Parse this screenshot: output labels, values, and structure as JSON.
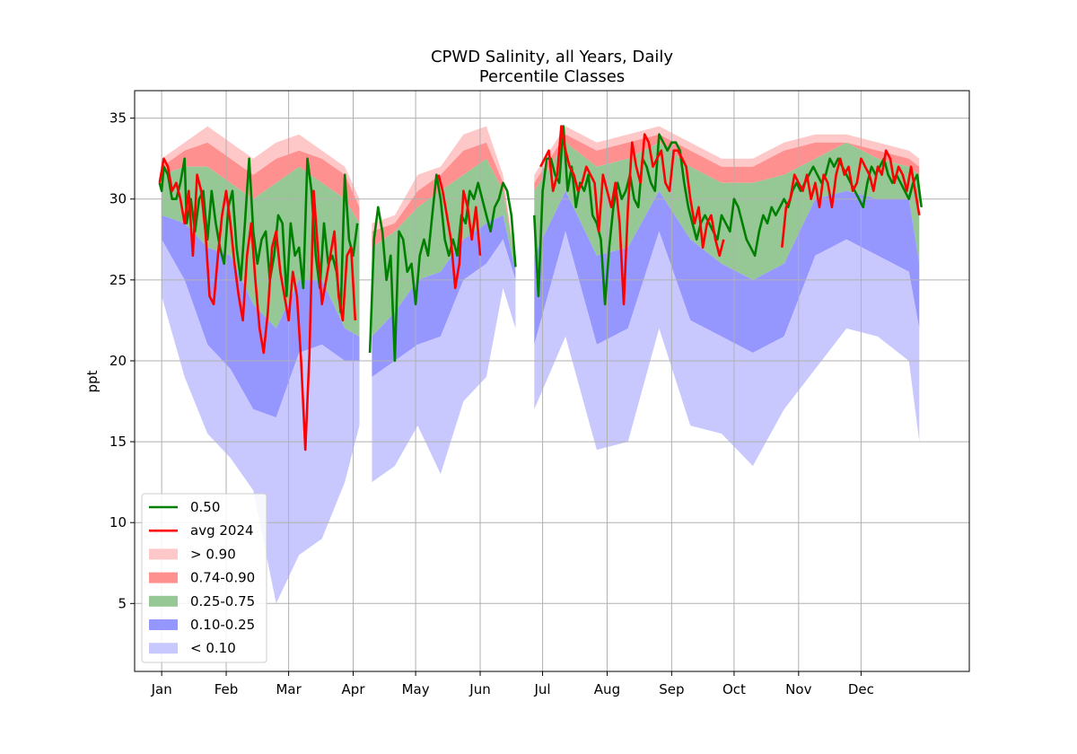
{
  "chart_data": {
    "type": "area",
    "title": "CPWD Salinity, all Years, Daily",
    "subtitle": "Percentile Classes",
    "ylabel": "ppt",
    "xlabel": "",
    "ylim": [
      0.8,
      36.7
    ],
    "yticks": [
      5,
      10,
      15,
      20,
      25,
      30,
      35
    ],
    "x_range_days": [
      -12,
      389
    ],
    "months": [
      {
        "label": "Jan",
        "day": 1
      },
      {
        "label": "Feb",
        "day": 32
      },
      {
        "label": "Mar",
        "day": 62
      },
      {
        "label": "Apr",
        "day": 93
      },
      {
        "label": "May",
        "day": 123
      },
      {
        "label": "Jun",
        "day": 154
      },
      {
        "label": "Jul",
        "day": 184
      },
      {
        "label": "Aug",
        "day": 215
      },
      {
        "label": "Sep",
        "day": 246
      },
      {
        "label": "Oct",
        "day": 276
      },
      {
        "label": "Nov",
        "day": 307
      },
      {
        "label": "Dec",
        "day": 337
      }
    ],
    "grid": true,
    "legend_position": "lower-left",
    "legend": [
      {
        "label": "0.50",
        "kind": "line",
        "color": "#008000"
      },
      {
        "label": "avg 2024",
        "kind": "line",
        "color": "#ff0000"
      },
      {
        "label": "> 0.90",
        "kind": "patch",
        "color": "#ffc8c8"
      },
      {
        "label": "0.74-0.90",
        "kind": "patch",
        "color": "#ff9090"
      },
      {
        "label": "0.25-0.75",
        "kind": "patch",
        "color": "#96c896"
      },
      {
        "label": "0.10-0.25",
        "kind": "patch",
        "color": "#9696ff"
      },
      {
        "label": "< 0.10",
        "kind": "patch",
        "color": "#c8c8ff"
      }
    ],
    "segments": [
      {
        "x": [
          1,
          12,
          23,
          34,
          45,
          56,
          67,
          78,
          89,
          96
        ],
        "max": [
          32.5,
          33.5,
          34.5,
          33.5,
          32.5,
          33.5,
          34.0,
          33.0,
          32.0,
          30.0
        ],
        "p90": [
          32.0,
          33.0,
          33.5,
          32.5,
          31.5,
          32.5,
          33.0,
          32.5,
          31.5,
          29.5
        ],
        "p75": [
          31.5,
          32.0,
          32.0,
          31.0,
          30.0,
          31.0,
          32.0,
          31.0,
          30.0,
          28.5
        ],
        "p50": [
          31.0,
          31.5,
          30.0,
          28.5,
          27.5,
          28.0,
          28.0,
          29.5,
          27.5,
          28.5
        ],
        "p25": [
          29.0,
          28.5,
          27.0,
          26.5,
          23.5,
          22.0,
          25.0,
          25.0,
          22.0,
          21.5
        ],
        "p10": [
          27.5,
          25.0,
          21.0,
          19.5,
          17.0,
          16.5,
          20.5,
          21.0,
          20.0,
          20.0
        ],
        "min": [
          24.0,
          19.0,
          15.5,
          14.0,
          12.0,
          5.0,
          8.0,
          9.0,
          12.5,
          16.0
        ]
      },
      {
        "x": [
          102,
          113,
          124,
          135,
          146,
          157,
          165,
          171
        ],
        "max": [
          28.5,
          29.0,
          31.5,
          32.0,
          34.0,
          34.5,
          31.5,
          26.0
        ],
        "p90": [
          28.0,
          28.5,
          30.5,
          31.5,
          33.0,
          33.5,
          31.0,
          26.0
        ],
        "p75": [
          27.0,
          28.0,
          29.5,
          30.5,
          31.5,
          32.5,
          30.5,
          26.0
        ],
        "p50": [
          24.0,
          25.5,
          27.0,
          27.5,
          30.0,
          30.5,
          30.5,
          26.0
        ],
        "p25": [
          21.5,
          23.0,
          25.0,
          25.5,
          27.5,
          28.5,
          29.0,
          25.5
        ],
        "p10": [
          19.0,
          20.0,
          21.0,
          21.5,
          25.0,
          26.0,
          27.5,
          25.0
        ],
        "min": [
          12.5,
          13.5,
          16.0,
          13.0,
          17.5,
          19.0,
          24.5,
          22.0
        ]
      },
      {
        "x": [
          180,
          195,
          210,
          225,
          240,
          255,
          270,
          285,
          300,
          315,
          330,
          345,
          360,
          365
        ],
        "max": [
          31.5,
          34.5,
          33.5,
          34.0,
          34.5,
          33.5,
          32.5,
          32.5,
          33.5,
          34.0,
          34.0,
          33.5,
          33.0,
          32.5
        ],
        "p90": [
          31.0,
          34.0,
          33.0,
          33.5,
          34.0,
          33.0,
          32.0,
          32.0,
          33.0,
          33.5,
          33.5,
          33.0,
          32.5,
          32.0
        ],
        "p75": [
          30.5,
          33.5,
          32.0,
          32.5,
          33.5,
          32.0,
          31.0,
          31.0,
          31.5,
          32.5,
          33.5,
          32.5,
          32.0,
          31.5
        ],
        "p50": [
          29.0,
          32.5,
          30.0,
          30.0,
          33.0,
          30.5,
          29.0,
          28.5,
          29.5,
          31.5,
          32.0,
          32.0,
          31.5,
          29.5
        ],
        "p25": [
          26.5,
          30.5,
          26.5,
          27.0,
          30.5,
          27.5,
          26.0,
          25.0,
          26.0,
          30.0,
          30.5,
          30.0,
          30.0,
          26.0
        ],
        "p10": [
          21.0,
          28.0,
          21.0,
          22.0,
          28.0,
          22.5,
          21.5,
          20.5,
          21.5,
          26.5,
          27.5,
          26.5,
          25.5,
          22.0
        ],
        "min": [
          17.0,
          21.5,
          14.5,
          15.0,
          22.0,
          16.0,
          15.5,
          13.5,
          17.0,
          19.5,
          22.0,
          21.5,
          20.0,
          15.0
        ]
      }
    ],
    "median_segments": [
      {
        "x": [
          0,
          1,
          2,
          4,
          6,
          8,
          10,
          12,
          13,
          15,
          17,
          19,
          21,
          23,
          25,
          27,
          29,
          31,
          33,
          35,
          37,
          39,
          41,
          43,
          45,
          47,
          49,
          51,
          53,
          55,
          57,
          59,
          61,
          63,
          65,
          67,
          69,
          71,
          73,
          75,
          77,
          79,
          81,
          83,
          85,
          87,
          89,
          91,
          93,
          95
        ],
        "y": [
          31.0,
          30.5,
          32.0,
          31.5,
          30.0,
          30.0,
          31.0,
          32.5,
          28.5,
          30.0,
          28.0,
          30.0,
          30.5,
          27.5,
          30.5,
          28.5,
          27.0,
          26.0,
          29.5,
          30.5,
          27.0,
          25.0,
          28.5,
          32.5,
          28.0,
          26.0,
          27.5,
          28.0,
          25.0,
          26.5,
          29.0,
          28.5,
          24.0,
          28.5,
          26.5,
          27.0,
          24.5,
          32.5,
          30.5,
          26.5,
          24.5,
          28.5,
          26.0,
          26.5,
          25.5,
          23.0,
          31.5,
          27.5,
          26.5,
          28.5
        ]
      },
      {
        "x": [
          101,
          103,
          105,
          107,
          109,
          111,
          113,
          115,
          117,
          119,
          121,
          123,
          125,
          127,
          129,
          131,
          133,
          135,
          137,
          139,
          141,
          143,
          145,
          147,
          149,
          151,
          153,
          155,
          157,
          159,
          161,
          163,
          165,
          167,
          169,
          171
        ],
        "y": [
          20.5,
          27.5,
          29.5,
          28.0,
          25.0,
          26.5,
          20.0,
          28.0,
          27.5,
          25.5,
          26.0,
          23.5,
          26.5,
          27.5,
          26.5,
          29.0,
          31.5,
          30.0,
          27.5,
          26.5,
          27.5,
          26.5,
          29.0,
          28.5,
          30.5,
          30.0,
          31.0,
          30.0,
          29.0,
          28.0,
          29.5,
          30.0,
          31.0,
          30.5,
          29.0,
          25.8
        ]
      },
      {
        "x": [
          180,
          182,
          184,
          186,
          188,
          190,
          192,
          194,
          196,
          198,
          200,
          202,
          204,
          206,
          208,
          210,
          212,
          214,
          216,
          218,
          220,
          222,
          224,
          226,
          228,
          230,
          232,
          234,
          236,
          238,
          240,
          242,
          244,
          246,
          248,
          250,
          252,
          254,
          256,
          258,
          260,
          262,
          264,
          266,
          268,
          270,
          272,
          274,
          276,
          278,
          280,
          282,
          284,
          286,
          288,
          290,
          292,
          294,
          296,
          298,
          300,
          302,
          304,
          306,
          308,
          310,
          312,
          314,
          316,
          318,
          320,
          322,
          324,
          326,
          328,
          330,
          332,
          334,
          336,
          338,
          340,
          342,
          344,
          346,
          348,
          350,
          352,
          354,
          356,
          358,
          360,
          362,
          364,
          366
        ],
        "y": [
          29.0,
          24.0,
          30.5,
          32.5,
          32.5,
          31.5,
          31.0,
          34.5,
          30.5,
          32.0,
          29.5,
          31.0,
          30.5,
          31.5,
          29.0,
          28.5,
          27.5,
          23.5,
          27.0,
          29.5,
          31.0,
          30.0,
          30.5,
          31.5,
          30.0,
          29.5,
          32.5,
          32.0,
          31.0,
          30.5,
          34.0,
          33.5,
          33.0,
          33.5,
          33.5,
          33.0,
          31.0,
          29.5,
          28.5,
          27.5,
          28.5,
          29.0,
          28.5,
          28.0,
          27.5,
          29.0,
          28.5,
          28.0,
          30.0,
          29.5,
          28.5,
          27.5,
          27.0,
          26.5,
          28.0,
          29.0,
          28.5,
          29.5,
          29.0,
          29.5,
          30.0,
          29.5,
          30.5,
          31.0,
          30.5,
          31.0,
          31.5,
          32.0,
          31.5,
          31.0,
          31.5,
          32.5,
          32.0,
          32.5,
          32.0,
          31.5,
          31.0,
          30.5,
          30.0,
          29.5,
          31.0,
          32.0,
          31.5,
          32.0,
          32.5,
          31.5,
          31.0,
          31.5,
          31.0,
          30.5,
          30.0,
          31.0,
          31.5,
          29.5
        ]
      }
    ],
    "avg_segments": [
      {
        "x": [
          0,
          2,
          4,
          6,
          8,
          10,
          12,
          14,
          16,
          18,
          20,
          22,
          24,
          26,
          28,
          30,
          32,
          34,
          36,
          38,
          40,
          42,
          44,
          46,
          48,
          50,
          52,
          54,
          56,
          58,
          60,
          62,
          64,
          66,
          68,
          70,
          72,
          74,
          76,
          78,
          80,
          82,
          84,
          86,
          88,
          90,
          92,
          94
        ],
        "y": [
          31.0,
          32.5,
          32.0,
          30.5,
          31.0,
          30.0,
          28.5,
          30.5,
          26.5,
          31.5,
          30.5,
          28.0,
          24.0,
          23.5,
          26.5,
          29.0,
          30.5,
          28.5,
          26.0,
          24.0,
          22.5,
          26.5,
          28.5,
          25.0,
          22.0,
          20.5,
          23.0,
          27.0,
          28.0,
          25.5,
          24.0,
          22.5,
          25.5,
          24.0,
          20.0,
          14.5,
          20.5,
          30.5,
          27.0,
          23.5,
          25.0,
          26.5,
          28.0,
          24.0,
          22.5,
          26.5,
          27.0,
          22.5
        ]
      },
      {
        "x": [
          134,
          136,
          138,
          140,
          142,
          144,
          146,
          148,
          150,
          152,
          154
        ],
        "y": [
          31.5,
          30.5,
          29.0,
          27.5,
          24.5,
          26.0,
          30.5,
          29.5,
          27.5,
          29.5,
          26.5
        ]
      },
      {
        "x": [
          183,
          185,
          187,
          189,
          191,
          193,
          195,
          197,
          199,
          201,
          203,
          205,
          207,
          209,
          211,
          213,
          215,
          217,
          219,
          221,
          223,
          225,
          227,
          229,
          231,
          233,
          235,
          237,
          239,
          241,
          243,
          245,
          247,
          249,
          251,
          253,
          255,
          257,
          259,
          261,
          263,
          265,
          267,
          269,
          271
        ],
        "y": [
          32.0,
          32.5,
          33.0,
          30.5,
          31.5,
          34.5,
          33.0,
          32.0,
          31.5,
          30.5,
          31.0,
          32.0,
          31.5,
          31.0,
          28.0,
          31.5,
          30.5,
          29.5,
          31.0,
          28.5,
          23.5,
          29.5,
          33.5,
          32.0,
          31.0,
          34.0,
          33.5,
          32.0,
          32.5,
          33.0,
          31.0,
          30.5,
          33.0,
          33.0,
          32.5,
          32.0,
          30.0,
          28.5,
          29.5,
          27.0,
          28.5,
          29.0,
          27.5,
          26.5,
          27.5
        ]
      },
      {
        "x": [
          299,
          301,
          303,
          305,
          307,
          309,
          311,
          313,
          315,
          317,
          319,
          321,
          323,
          325,
          327,
          329,
          331,
          333,
          335,
          337,
          339,
          341,
          343,
          345,
          347,
          349,
          351,
          353,
          355,
          357,
          359,
          361,
          363,
          365
        ],
        "y": [
          27.0,
          29.5,
          30.0,
          31.5,
          31.0,
          30.5,
          31.5,
          30.0,
          31.0,
          29.5,
          31.5,
          31.0,
          29.5,
          31.5,
          32.5,
          31.5,
          32.0,
          30.5,
          31.0,
          32.5,
          32.0,
          31.5,
          30.5,
          32.0,
          31.5,
          33.0,
          32.5,
          31.0,
          32.0,
          31.5,
          30.5,
          32.0,
          30.5,
          29.0
        ]
      }
    ]
  }
}
